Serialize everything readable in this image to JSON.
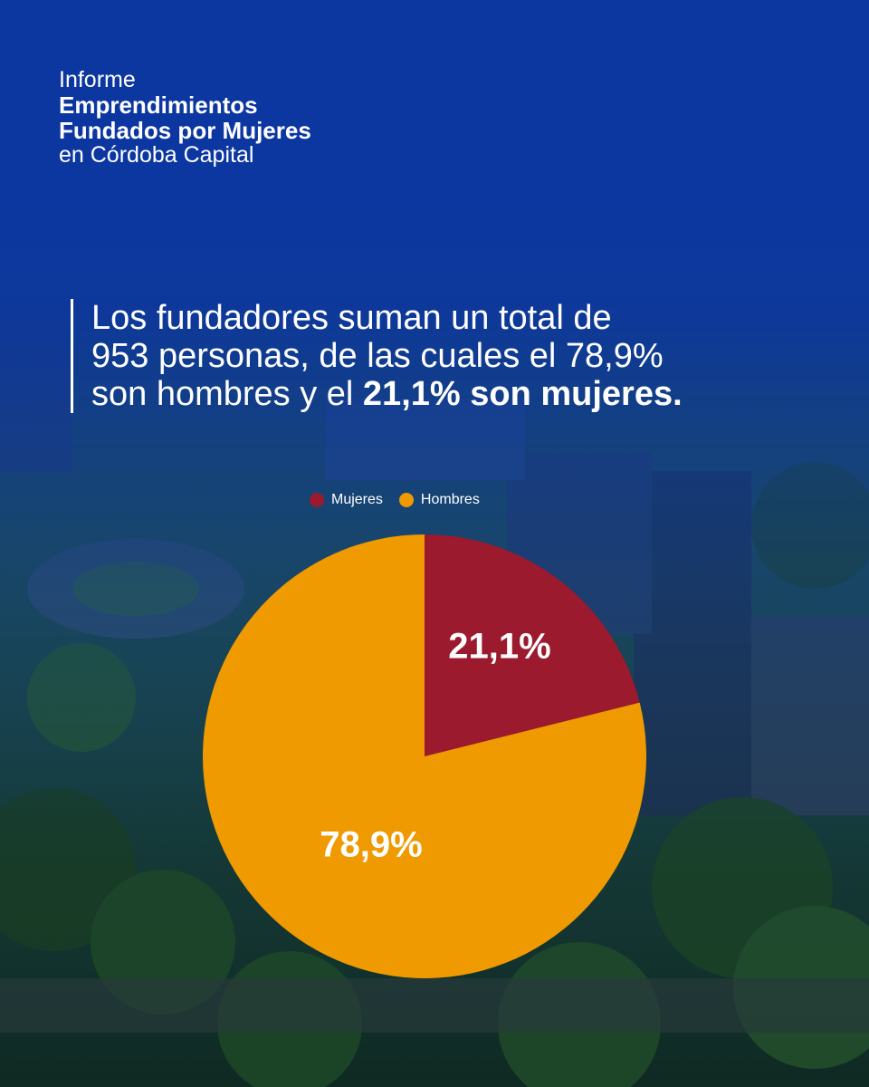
{
  "report": {
    "line1": "Informe",
    "line2": "Emprendimientos",
    "line3": "Fundados por Mujeres",
    "line4": "en Córdoba Capital"
  },
  "headline": {
    "line1": "Los fundadores suman un total de",
    "line2": "953 personas, de las cuales el 78,9%",
    "line3_regular": "son hombres y el ",
    "line3_bold": "21,1% son mujeres."
  },
  "colors": {
    "background": "#0c37a0",
    "mujeres": "#9b1a2e",
    "hombres": "#ef9a00",
    "text": "#ffffff"
  },
  "chart_data": {
    "type": "pie",
    "legend_position": "top",
    "categories": [
      "Mujeres",
      "Hombres"
    ],
    "values": [
      21.1,
      78.9
    ],
    "labels": [
      "21,1%",
      "78,9%"
    ],
    "colors": [
      "#9b1a2e",
      "#ef9a00"
    ]
  }
}
